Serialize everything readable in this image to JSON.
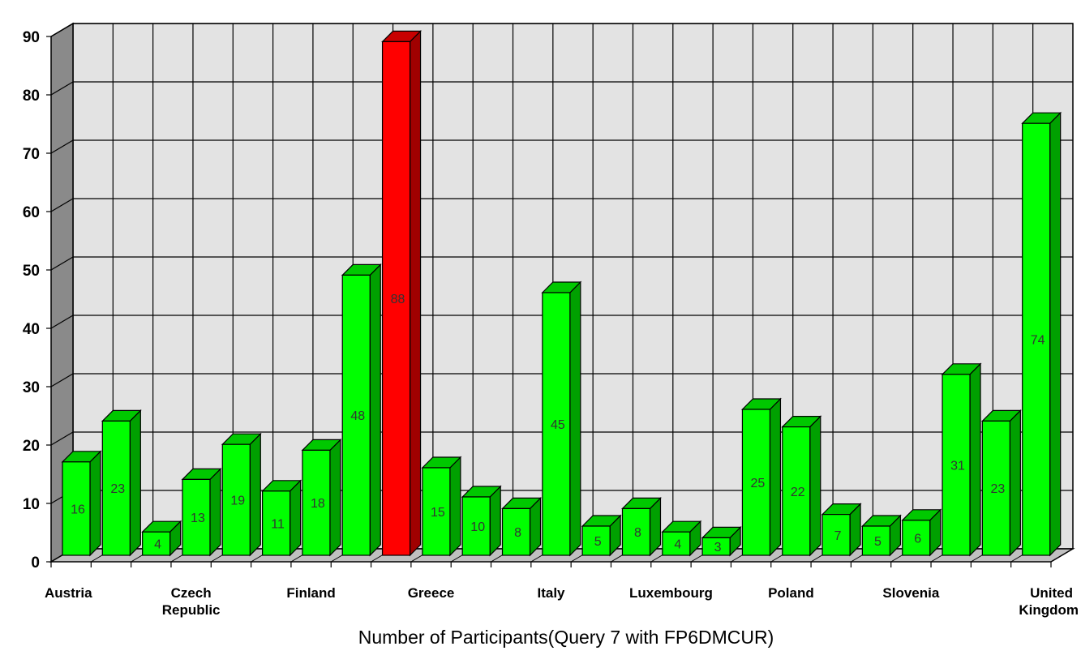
{
  "chart_data": {
    "type": "bar",
    "title": "",
    "xlabel": "Number of Participants(Query 7 with FP6DMCUR)",
    "ylabel": "",
    "ylim": [
      0,
      90
    ],
    "yticks": [
      "0",
      "10",
      "20",
      "30",
      "40",
      "50",
      "60",
      "70",
      "80",
      "90"
    ],
    "grid": true,
    "legend": "none",
    "x_tick_labels": [
      "Austria",
      "Czech Republic",
      "Finland",
      "Greece",
      "Italy",
      "Luxembourg",
      "Poland",
      "Slovenia",
      "United Kingdom"
    ],
    "values": [
      16,
      23,
      4,
      13,
      19,
      11,
      18,
      48,
      88,
      15,
      10,
      8,
      45,
      5,
      8,
      4,
      3,
      25,
      22,
      7,
      5,
      6,
      31,
      23,
      74
    ],
    "data_labels": [
      "16",
      "23",
      "4",
      "13",
      "19",
      "11",
      "18",
      "48",
      "88",
      "15",
      "10",
      "8",
      "45",
      "5",
      "8",
      "4",
      "3",
      "25",
      "22",
      "7",
      "5",
      "6",
      "31",
      "23",
      "74"
    ],
    "highlight_index": 8,
    "colors": {
      "bar": "#00ff00",
      "bar_side": "#00a000",
      "bar_top": "#00c800",
      "highlight": "#ff0000",
      "highlight_side": "#a00000",
      "highlight_top": "#c80000",
      "back_wall": "#e3e3e3",
      "side_wall": "#8a8a8a",
      "floor": "#c0c0c0"
    }
  }
}
